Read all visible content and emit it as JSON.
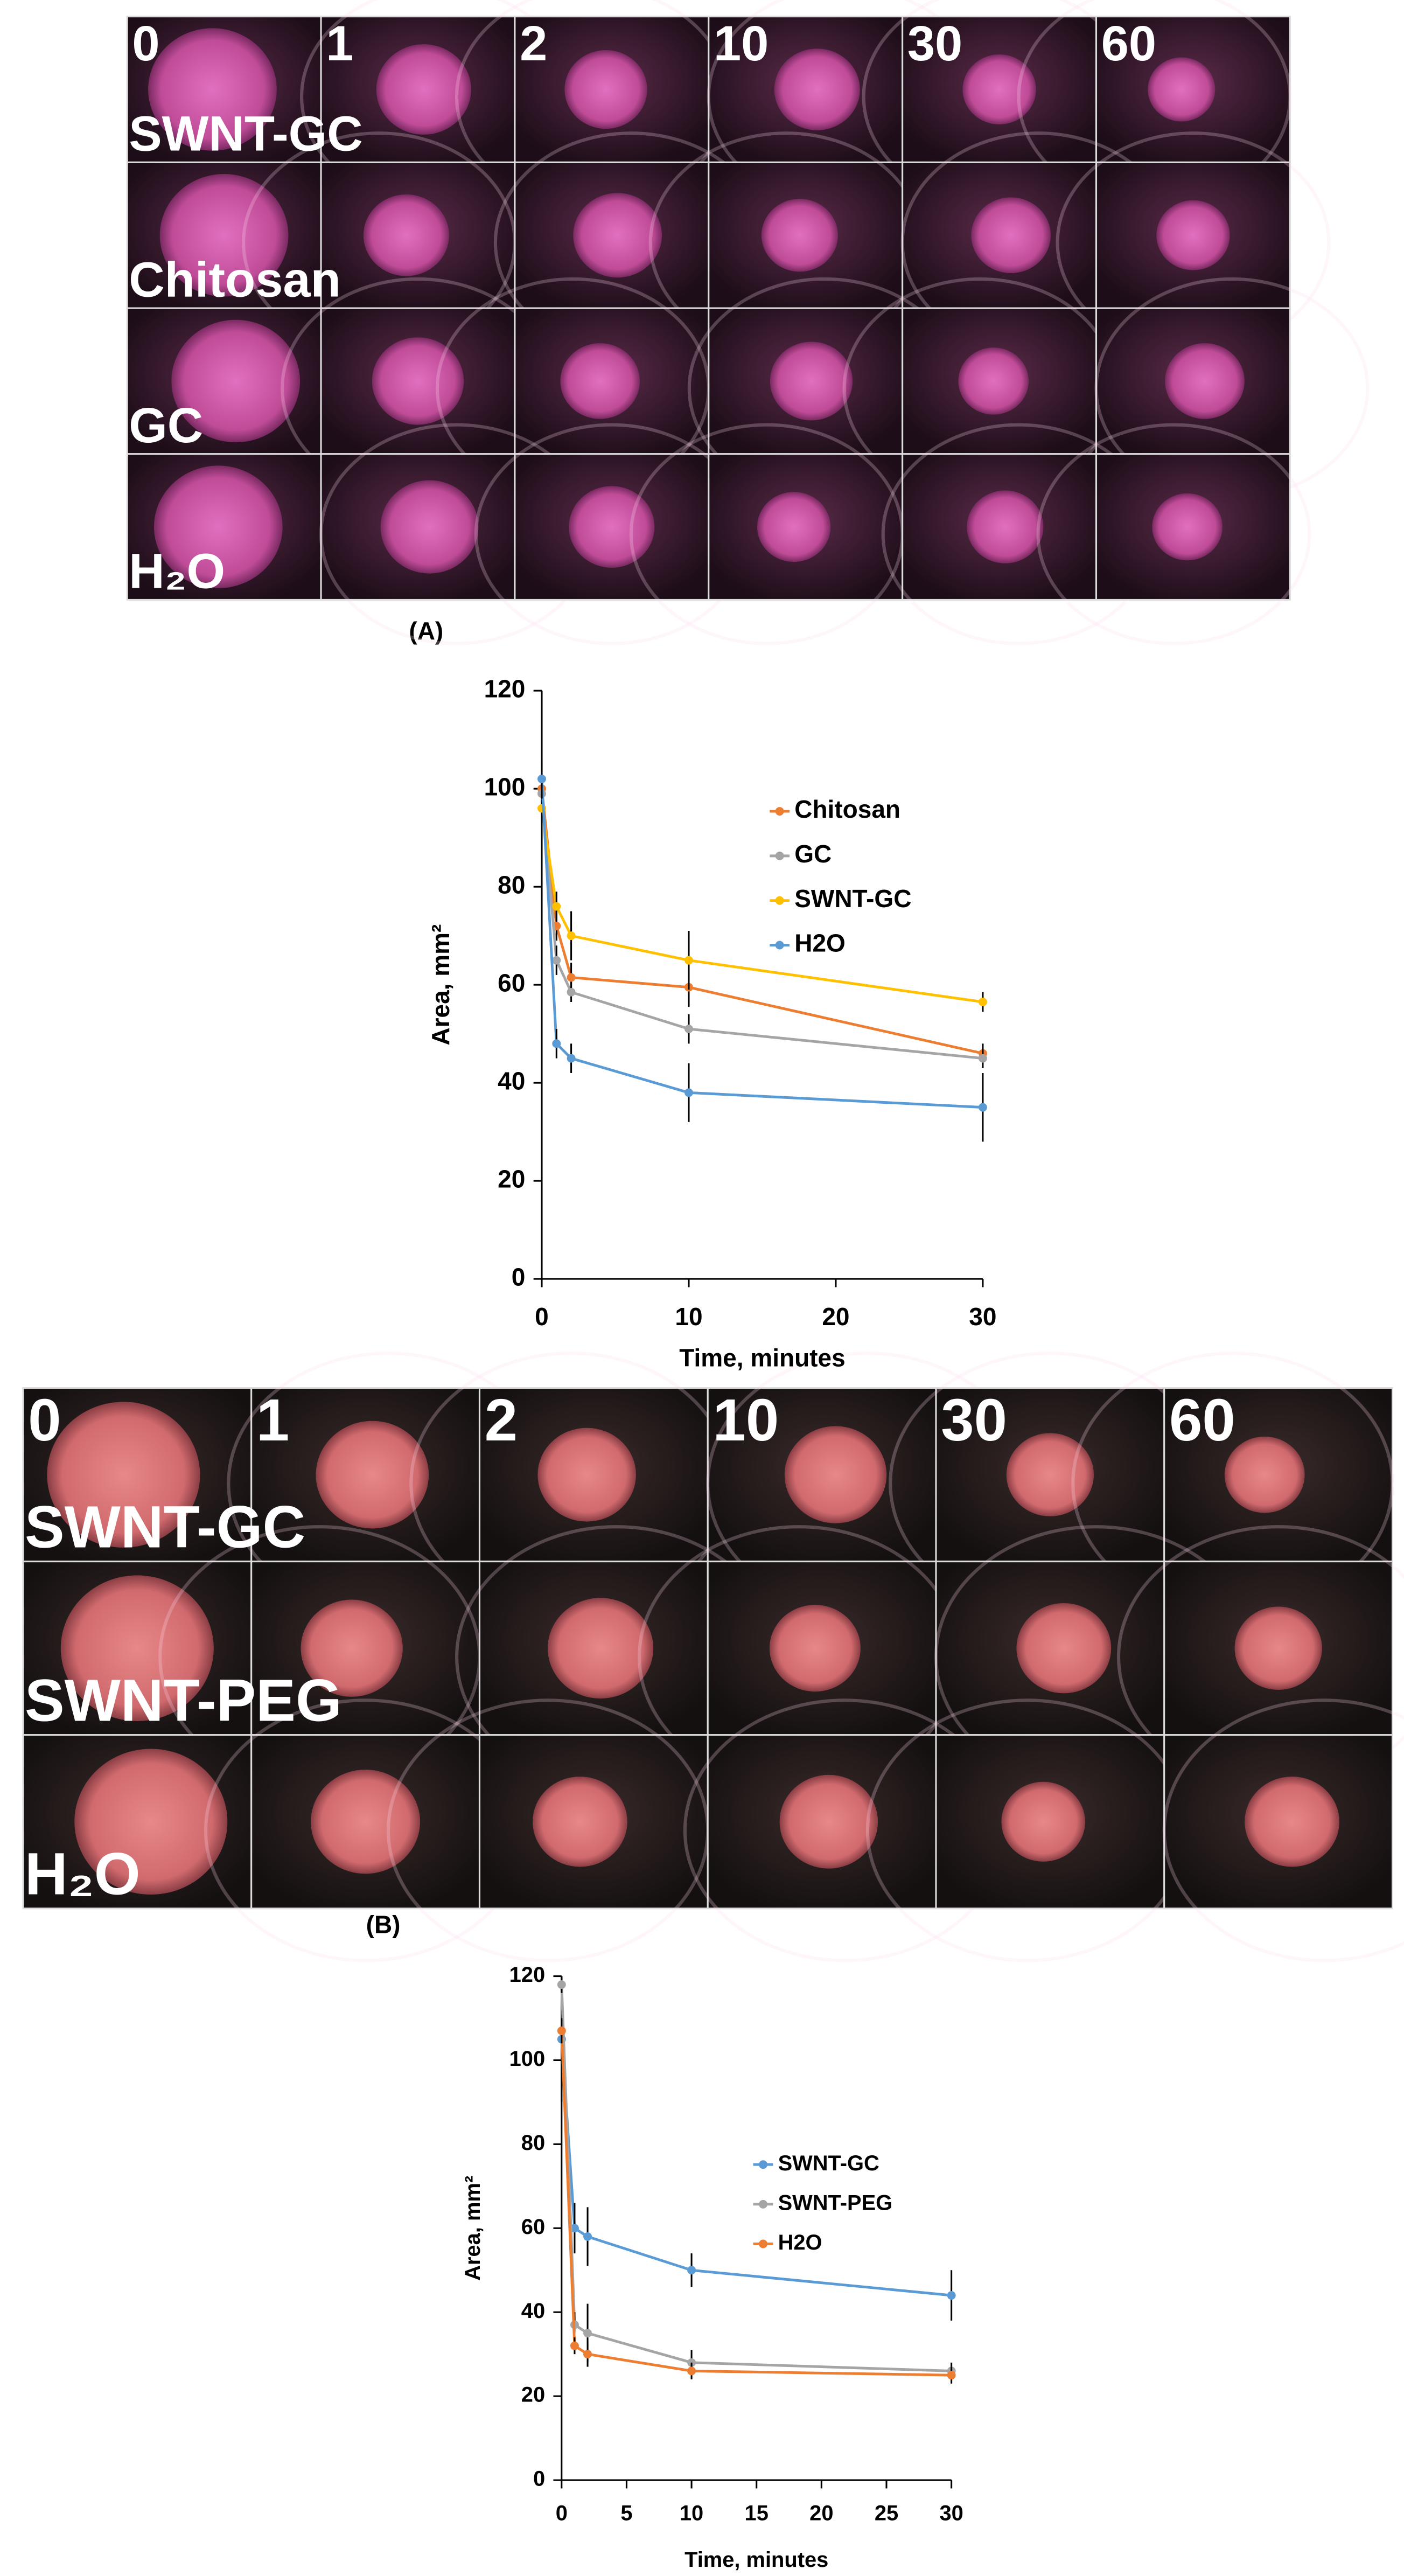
{
  "figure_a": {
    "time_labels": [
      "0",
      "1",
      "2",
      "10",
      "30",
      "60"
    ],
    "row_labels": [
      "SWNT-GC",
      "Chitosan",
      "GC",
      "H₂O"
    ],
    "panel_label": "(A)"
  },
  "figure_b": {
    "time_labels": [
      "0",
      "1",
      "2",
      "10",
      "30",
      "60"
    ],
    "row_labels": [
      "SWNT-GC",
      "SWNT-PEG",
      "H₂O"
    ],
    "panel_label": "(B)"
  },
  "chart_data": [
    {
      "type": "line",
      "x_label": "Time, minutes",
      "y_label": "Area, mm²",
      "x": [
        0,
        1,
        2,
        10,
        30
      ],
      "xlim": [
        0,
        30
      ],
      "xticks": [
        0,
        10,
        20,
        30
      ],
      "ylim": [
        0,
        120
      ],
      "yticks": [
        0,
        20,
        40,
        60,
        80,
        100,
        120
      ],
      "grid": false,
      "legend": "right",
      "series": [
        {
          "name": "Chitosan",
          "color": "#ed7d31",
          "values": [
            100,
            72,
            61.5,
            59.5,
            46
          ],
          "errors": [
            3,
            3,
            3,
            4,
            2
          ]
        },
        {
          "name": "GC",
          "color": "#a5a5a5",
          "values": [
            99,
            65,
            58.5,
            51,
            45
          ],
          "errors": [
            3,
            3,
            2,
            3,
            2
          ]
        },
        {
          "name": "SWNT-GC",
          "color": "#ffc000",
          "values": [
            96,
            76,
            70,
            65,
            56.5
          ],
          "errors": [
            3,
            3,
            5,
            6,
            2
          ]
        },
        {
          "name": "H2O",
          "color": "#5b9bd5",
          "values": [
            102,
            48,
            45,
            38,
            35
          ],
          "errors": [
            4,
            3,
            3,
            6,
            7
          ]
        }
      ]
    },
    {
      "type": "line",
      "x_label": "Time, minutes",
      "y_label": "Area, mm²",
      "x": [
        0,
        1,
        2,
        10,
        30
      ],
      "xlim": [
        0,
        30
      ],
      "xticks": [
        0,
        5,
        10,
        15,
        20,
        25,
        30
      ],
      "ylim": [
        0,
        120
      ],
      "yticks": [
        0,
        20,
        40,
        60,
        80,
        100,
        120
      ],
      "grid": false,
      "legend": "right",
      "series": [
        {
          "name": "SWNT-GC",
          "color": "#5b9bd5",
          "values": [
            105,
            60,
            58,
            50,
            44
          ],
          "errors": [
            15,
            6,
            7,
            4,
            6
          ]
        },
        {
          "name": "SWNT-PEG",
          "color": "#a5a5a5",
          "values": [
            118,
            37,
            35,
            28,
            26
          ],
          "errors": [
            2,
            3,
            7,
            3,
            2
          ]
        },
        {
          "name": "H2O",
          "color": "#ed7d31",
          "values": [
            107,
            32,
            30,
            26,
            25
          ],
          "errors": [
            3,
            2,
            3,
            2,
            2
          ]
        }
      ]
    }
  ]
}
